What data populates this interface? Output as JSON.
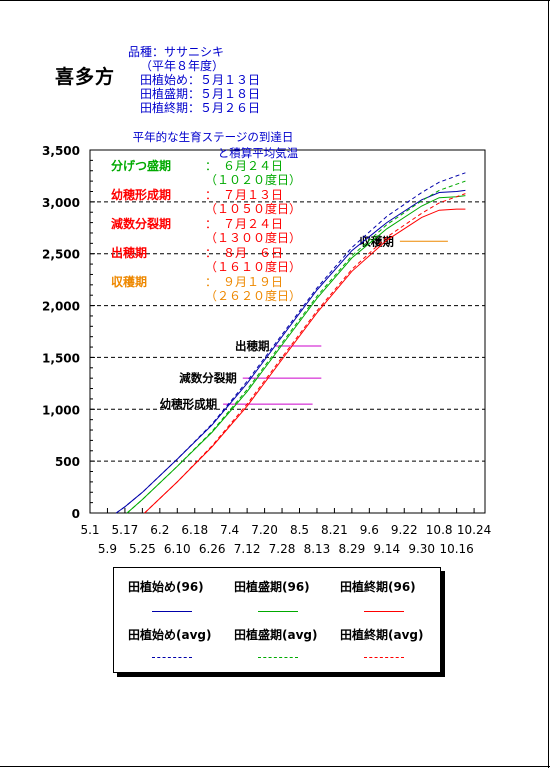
{
  "place": "喜多方",
  "info": {
    "variety": "品種：ササニシキ",
    "year": "（平年８年度）",
    "start": "田植始め：５月１３日",
    "peak": "田植盛期：５月１８日",
    "end": "田植終期：５月２６日"
  },
  "colors": {
    "start": "#0000aa",
    "peak": "#00aa00",
    "end": "#ff0000",
    "stage_green": "#00aa00",
    "stage_red": "#ff0000",
    "stage_orange": "#ee8800",
    "bar_magenta": "#cc00cc"
  },
  "chart_data": {
    "type": "line",
    "title": "平年的な生育ステージの到達日",
    "subtitle": "と積算平均気温",
    "ylim": [
      0,
      3500
    ],
    "yticks": [
      "0",
      "500",
      "1,000",
      "1,500",
      "2,000",
      "2,500",
      "3,000",
      "3,500"
    ],
    "xticks_top": [
      "5.1",
      "5.17",
      "6.2",
      "6.18",
      "7.4",
      "7.20",
      "8.5",
      "8.21",
      "9.6",
      "9.22",
      "10.8",
      "10.24"
    ],
    "xticks_bottom": [
      "5.9",
      "5.25",
      "6.10",
      "6.26",
      "7.12",
      "7.28",
      "8.13",
      "8.29",
      "9.14",
      "9.30",
      "10.16"
    ],
    "x_dates": [
      "5.1",
      "5.9",
      "5.17",
      "5.25",
      "6.2",
      "6.10",
      "6.18",
      "6.26",
      "7.4",
      "7.12",
      "7.20",
      "7.28",
      "8.5",
      "8.13",
      "8.21",
      "8.29",
      "9.6",
      "9.14",
      "9.22",
      "9.30",
      "10.8",
      "10.16",
      "10.24"
    ],
    "grid_y": [
      500,
      1000,
      1500,
      2000,
      2500,
      3000
    ],
    "series": [
      {
        "name": "田植始め(96)",
        "style": "solid",
        "color": "#0000aa",
        "x": [
          "5.13",
          "5.17",
          "5.25",
          "6.10",
          "6.26",
          "7.12",
          "7.28",
          "8.13",
          "8.29",
          "9.14",
          "9.30",
          "10.8",
          "10.16",
          "10.20"
        ],
        "y": [
          0,
          60,
          200,
          520,
          850,
          1250,
          1700,
          2150,
          2530,
          2800,
          3020,
          3090,
          3100,
          3110
        ]
      },
      {
        "name": "田植盛期(96)",
        "style": "solid",
        "color": "#00aa00",
        "x": [
          "5.18",
          "5.25",
          "6.10",
          "6.26",
          "7.12",
          "7.28",
          "8.13",
          "8.29",
          "9.14",
          "9.30",
          "10.8",
          "10.16",
          "10.20"
        ],
        "y": [
          0,
          130,
          450,
          780,
          1170,
          1620,
          2070,
          2460,
          2740,
          2960,
          3040,
          3050,
          3060
        ]
      },
      {
        "name": "田植終期(96)",
        "style": "solid",
        "color": "#ff0000",
        "x": [
          "5.26",
          "6.2",
          "6.10",
          "6.26",
          "7.12",
          "7.28",
          "8.13",
          "8.29",
          "9.14",
          "9.30",
          "10.8",
          "10.16",
          "10.20"
        ],
        "y": [
          0,
          140,
          300,
          640,
          1030,
          1480,
          1930,
          2330,
          2630,
          2850,
          2920,
          2930,
          2930
        ]
      },
      {
        "name": "田植始め(avg)",
        "style": "dashed",
        "color": "#0000aa",
        "x": [
          "5.13",
          "5.17",
          "5.25",
          "6.10",
          "6.26",
          "7.12",
          "7.28",
          "8.13",
          "8.29",
          "9.14",
          "9.30",
          "10.8",
          "10.16",
          "10.20"
        ],
        "y": [
          0,
          60,
          200,
          520,
          860,
          1270,
          1720,
          2170,
          2560,
          2860,
          3090,
          3190,
          3250,
          3280
        ]
      },
      {
        "name": "田植盛期(avg)",
        "style": "dashed",
        "color": "#00aa00",
        "x": [
          "5.18",
          "5.25",
          "6.10",
          "6.26",
          "7.12",
          "7.28",
          "8.13",
          "8.29",
          "9.14",
          "9.30",
          "10.8",
          "10.16",
          "10.20"
        ],
        "y": [
          0,
          130,
          450,
          790,
          1190,
          1640,
          2090,
          2480,
          2780,
          3010,
          3110,
          3170,
          3200
        ]
      },
      {
        "name": "田植終期(avg)",
        "style": "dashed",
        "color": "#ff0000",
        "x": [
          "5.26",
          "6.2",
          "6.10",
          "6.26",
          "7.12",
          "7.28",
          "8.13",
          "8.29",
          "9.14",
          "9.30",
          "10.8",
          "10.16",
          "10.20"
        ],
        "y": [
          0,
          140,
          300,
          650,
          1050,
          1500,
          1950,
          2350,
          2660,
          2890,
          2990,
          3050,
          3080
        ]
      }
    ],
    "stages": [
      {
        "name": "分げつ盛期",
        "date": "：　６月２４日",
        "gdd": "（１０２０度日）",
        "color": "#00aa00"
      },
      {
        "name": "幼穂形成期",
        "date": "：　７月１３日",
        "gdd": "（１０５０度日）",
        "color": "#ff0000"
      },
      {
        "name": "減数分裂期",
        "date": "：　７月２４日",
        "gdd": "（１３００度日）",
        "color": "#ff0000"
      },
      {
        "name": "出穂期",
        "date": "：　８月　６日",
        "gdd": "（１６１０度日）",
        "color": "#ff0000"
      },
      {
        "name": "収穫期",
        "date": "：　９月１９日",
        "gdd": "（２６２０度日）",
        "color": "#ee8800"
      }
    ],
    "markers": [
      {
        "label": "幼穂形成期",
        "y": 1050,
        "x_from": "7.1",
        "x_to": "8.11",
        "color": "#cc00cc"
      },
      {
        "label": "減数分裂期",
        "y": 1300,
        "x_from": "7.10",
        "x_to": "8.15",
        "color": "#cc00cc"
      },
      {
        "label": "出穂期",
        "y": 1610,
        "x_from": "7.25",
        "x_to": "8.15",
        "color": "#cc00cc"
      },
      {
        "label": "収穫期",
        "y": 2620,
        "x_from": "9.20",
        "x_to": "10.12",
        "color": "#ee8800"
      }
    ],
    "legend": [
      {
        "name": "田植始め(96)",
        "color": "#0000aa",
        "style": "solid"
      },
      {
        "name": "田植盛期(96)",
        "color": "#00aa00",
        "style": "solid"
      },
      {
        "name": "田植終期(96)",
        "color": "#ff0000",
        "style": "solid"
      },
      {
        "name": "田植始め(avg)",
        "color": "#0000aa",
        "style": "dashed"
      },
      {
        "name": "田植盛期(avg)",
        "color": "#00aa00",
        "style": "dashed"
      },
      {
        "name": "田植終期(avg)",
        "color": "#ff0000",
        "style": "dashed"
      }
    ]
  }
}
